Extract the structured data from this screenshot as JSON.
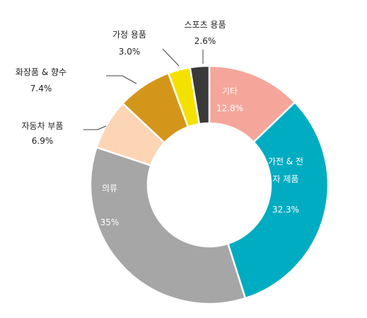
{
  "chart_data": {
    "type": "pie",
    "style": "donut",
    "slices": [
      {
        "label": "기타",
        "value": 12.8,
        "value_label": "12.8%",
        "color": "#F4A69A",
        "label_placement": "inside",
        "label_color": "#ffffff"
      },
      {
        "label": "가전 & 전자 제품",
        "label_lines": [
          "가전 & 전",
          "자 제품"
        ],
        "value": 32.3,
        "value_label": "32.3%",
        "color": "#00ACC1",
        "label_placement": "inside",
        "label_color": "#ffffff"
      },
      {
        "label": "의류",
        "value": 35,
        "value_label": "35%",
        "color": "#A6A6A6",
        "label_placement": "inside",
        "label_color": "#ffffff"
      },
      {
        "label": "자동차 부품",
        "value": 6.9,
        "value_label": "6.9%",
        "color": "#FCD5B5",
        "label_placement": "outside",
        "label_color": "#222222"
      },
      {
        "label": "화장품 & 향수",
        "value": 7.4,
        "value_label": "7.4%",
        "color": "#D4961A",
        "label_placement": "outside",
        "label_color": "#222222"
      },
      {
        "label": "가정 용품",
        "value": 3.0,
        "value_label": "3.0%",
        "color": "#F5E100",
        "label_placement": "outside",
        "label_color": "#222222"
      },
      {
        "label": "스포츠 용품",
        "value": 2.6,
        "value_label": "2.6%",
        "color": "#3A3A3A",
        "label_placement": "outside",
        "label_color": "#222222"
      }
    ],
    "start_angle_deg": 0,
    "direction": "clockwise",
    "legend": "none",
    "title": ""
  }
}
